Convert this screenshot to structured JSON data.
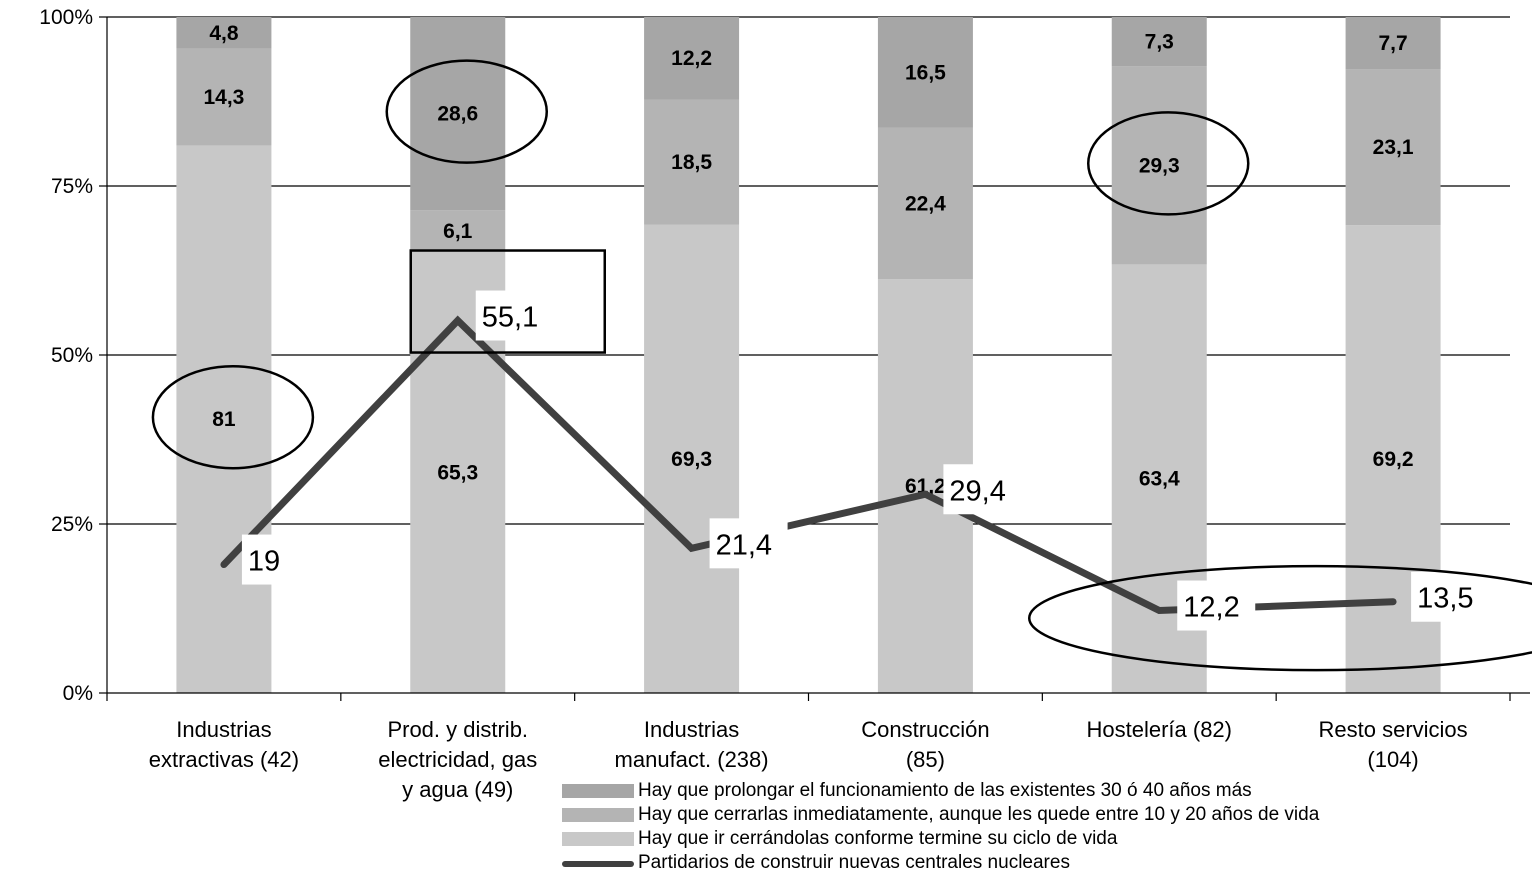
{
  "chart_data": {
    "type": "bar",
    "stacked": true,
    "title": "",
    "xlabel": "",
    "ylabel": "",
    "ylim": [
      0,
      100
    ],
    "y_ticks": [
      "0%",
      "25%",
      "50%",
      "75%",
      "100%"
    ],
    "grid": true,
    "legend_position": "bottom-right",
    "categories": [
      [
        "Industrias",
        "extractivas (42)"
      ],
      [
        "Prod. y distrib.",
        "electricidad, gas",
        "y agua (49)"
      ],
      [
        "Industrias",
        "manufact. (238)"
      ],
      [
        "Construcción",
        "(85)"
      ],
      [
        "Hostelería (82)"
      ],
      [
        "Resto servicios",
        "(104)"
      ]
    ],
    "series": [
      {
        "name": "Hay que ir cerrándolas conforme termine su ciclo de vida",
        "kind": "bar",
        "color": "#c8c8c8",
        "values": [
          81,
          65.3,
          69.3,
          61.2,
          63.4,
          69.2
        ],
        "labels": [
          "81",
          "65,3",
          "69,3",
          "61,2",
          "63,4",
          "69,2"
        ]
      },
      {
        "name": "Hay que cerrarlas inmediatamente, aunque les quede entre 10 y 20 años de vida",
        "kind": "bar",
        "color": "#b4b4b4",
        "values": [
          14.3,
          6.1,
          18.5,
          22.4,
          29.3,
          23.1
        ],
        "labels": [
          "14,3",
          "6,1",
          "18,5",
          "22,4",
          "29,3",
          "23,1"
        ]
      },
      {
        "name": "Hay que prolongar el funcionamiento de las existentes 30 ó 40 años más",
        "kind": "bar",
        "color": "#a6a6a6",
        "values": [
          4.8,
          28.6,
          12.2,
          16.5,
          7.3,
          7.7
        ],
        "labels": [
          "4,8",
          "28,6",
          "12,2",
          "16,5",
          "7,3",
          "7,7"
        ]
      },
      {
        "name": "Partidarios de construir nuevas centrales nucleares",
        "kind": "line",
        "color": "#404040",
        "values": [
          19,
          55.1,
          21.4,
          29.4,
          12.2,
          13.5
        ],
        "labels": [
          "19",
          "55,1",
          "21,4",
          "29,4",
          "12,2",
          "13,5"
        ]
      }
    ],
    "annotations": [
      {
        "shape": "ellipse",
        "series": 0,
        "index": 0
      },
      {
        "shape": "ellipse",
        "series": 2,
        "index": 1
      },
      {
        "shape": "ellipse",
        "series": 1,
        "index": 4
      },
      {
        "shape": "rectangle",
        "series": 3,
        "index": 1
      },
      {
        "shape": "ellipse",
        "series": 3,
        "index": [
          4,
          5
        ]
      }
    ]
  },
  "legend": {
    "items": [
      {
        "label": "Hay que prolongar el funcionamiento de las existentes 30 ó 40 años más",
        "color": "#a6a6a6",
        "kind": "bar"
      },
      {
        "label": "Hay que cerrarlas inmediatamente, aunque les quede entre 10 y 20 años de vida",
        "color": "#b4b4b4",
        "kind": "bar"
      },
      {
        "label": "Hay que ir cerrándolas conforme termine su ciclo de vida",
        "color": "#c8c8c8",
        "kind": "bar"
      },
      {
        "label": "Partidarios de construir nuevas centrales nucleares",
        "color": "#404040",
        "kind": "line"
      }
    ]
  }
}
